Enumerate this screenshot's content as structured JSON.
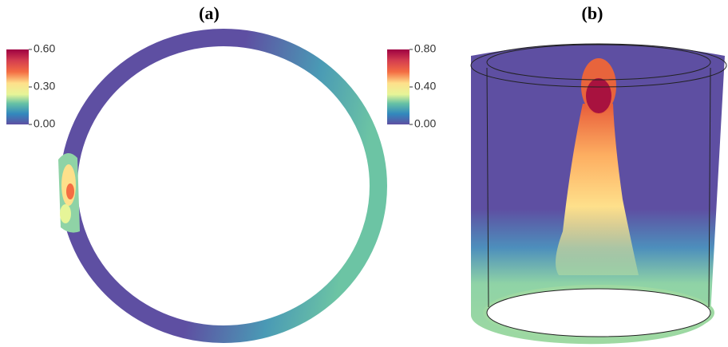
{
  "panels": [
    {
      "label": "(a)",
      "colorbar": {
        "ticks": [
          {
            "value": 0.6,
            "label": "0.60"
          },
          {
            "value": 0.3,
            "label": "0.30"
          },
          {
            "value": 0,
            "label": "0.00"
          }
        ]
      }
    },
    {
      "label": "(b)",
      "colorbar": {
        "ticks": [
          {
            "value": 0.8,
            "label": "0.80"
          },
          {
            "value": 0.4,
            "label": "0.40"
          },
          {
            "value": 0,
            "label": "0.00"
          }
        ]
      }
    }
  ]
}
